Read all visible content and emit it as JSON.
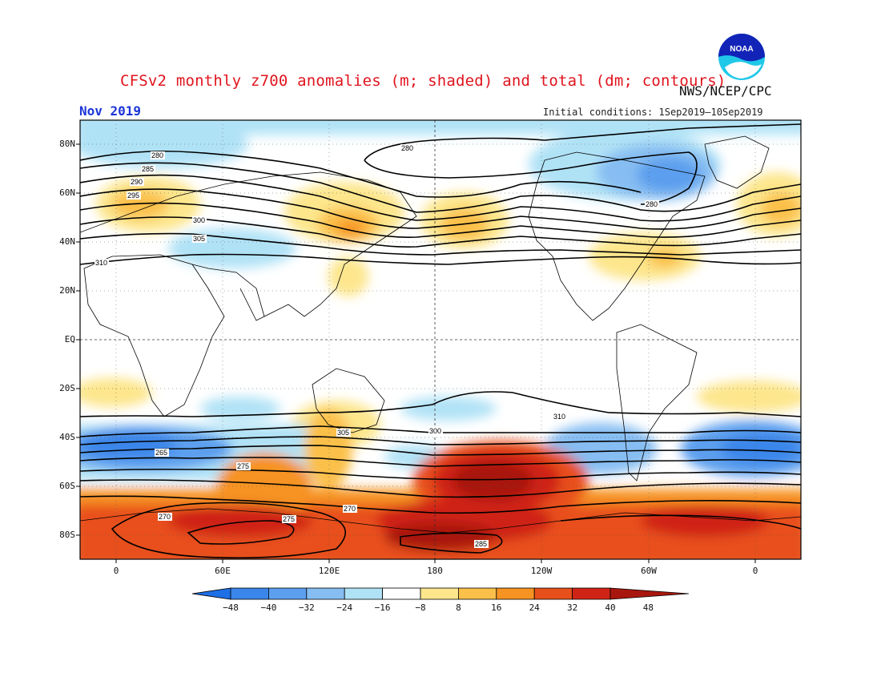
{
  "title": "CFSv2 monthly z700 anomalies (m; shaded) and total (dm; contours)",
  "agency": "NWS/NCEP/CPC",
  "month": "Nov 2019",
  "initial_conditions": "Initial conditions: 1Sep2019—10Sep2019",
  "logo_text": "NOAA",
  "lat_labels": [
    "80N",
    "60N",
    "40N",
    "20N",
    "EQ",
    "20S",
    "40S",
    "60S",
    "80S"
  ],
  "lon_labels": [
    "0",
    "60E",
    "120E",
    "180",
    "120W",
    "60W",
    "0"
  ],
  "colorbar": {
    "ticks": [
      "−48",
      "−40",
      "−32",
      "−24",
      "−16",
      "−8",
      "8",
      "16",
      "24",
      "32",
      "40",
      "48"
    ],
    "colors": [
      "#1e6fe6",
      "#3a86ea",
      "#5c9fee",
      "#86bdf2",
      "#b0e2f6",
      "#ffffff",
      "#fde68c",
      "#fbc04a",
      "#f69322",
      "#e8501b",
      "#cf2415",
      "#a8170e"
    ]
  },
  "contour_labels": [
    "280",
    "285",
    "290",
    "295",
    "300",
    "305",
    "310",
    "280",
    "270",
    "275",
    "285",
    "300",
    "305",
    "310",
    "265",
    "275",
    "270",
    "280"
  ]
}
